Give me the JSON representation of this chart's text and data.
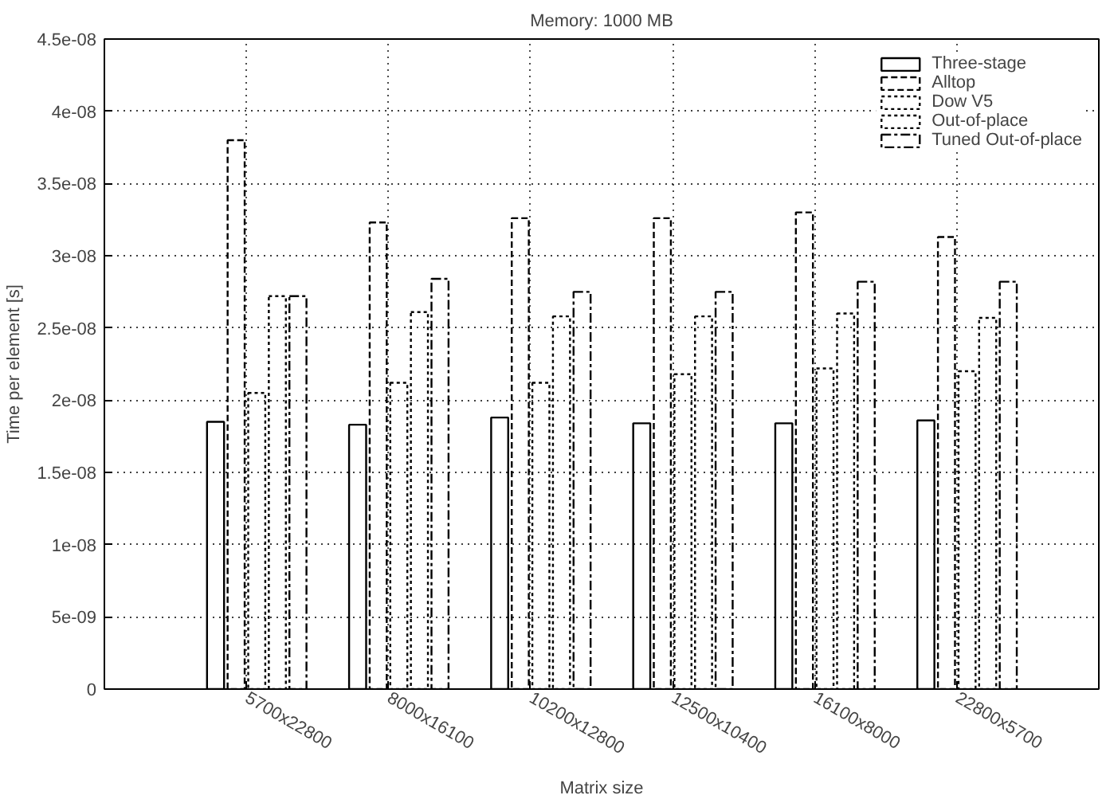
{
  "chart_data": {
    "type": "bar",
    "title": "Memory: 1000 MB",
    "xlabel": "Matrix size",
    "ylabel": "Time per element [s]",
    "categories": [
      "5700x22800",
      "8000x16100",
      "10200x12800",
      "12500x10400",
      "16100x8000",
      "22800x5700"
    ],
    "series": [
      {
        "name": "Three-stage",
        "color": "#000000",
        "line_style": "solid",
        "values": [
          1.85e-08,
          1.83e-08,
          1.88e-08,
          1.84e-08,
          1.84e-08,
          1.86e-08
        ]
      },
      {
        "name": "Alltop",
        "color": "#000000",
        "line_style": "dashed",
        "values": [
          3.8e-08,
          3.23e-08,
          3.26e-08,
          3.26e-08,
          3.3e-08,
          3.13e-08
        ]
      },
      {
        "name": "Dow V5",
        "color": "#000000",
        "line_style": "dotted",
        "values": [
          2.05e-08,
          2.12e-08,
          2.12e-08,
          2.18e-08,
          2.22e-08,
          2.2e-08
        ]
      },
      {
        "name": "Out-of-place",
        "color": "#000000",
        "line_style": "dotted",
        "values": [
          2.72e-08,
          2.61e-08,
          2.58e-08,
          2.58e-08,
          2.6e-08,
          2.57e-08
        ]
      },
      {
        "name": "Tuned Out-of-place",
        "color": "#000000",
        "line_style": "dashdot",
        "values": [
          2.72e-08,
          2.84e-08,
          2.75e-08,
          2.75e-08,
          2.82e-08,
          2.82e-08
        ]
      }
    ],
    "ylim": [
      0,
      4.5e-08
    ],
    "yticks": [
      {
        "value": 0,
        "label": "0"
      },
      {
        "value": 5e-09,
        "label": "5e-09"
      },
      {
        "value": 1e-08,
        "label": "1e-08"
      },
      {
        "value": 1.5e-08,
        "label": "1.5e-08"
      },
      {
        "value": 2e-08,
        "label": "2e-08"
      },
      {
        "value": 2.5e-08,
        "label": "2.5e-08"
      },
      {
        "value": 3e-08,
        "label": "3e-08"
      },
      {
        "value": 3.5e-08,
        "label": "3.5e-08"
      },
      {
        "value": 4e-08,
        "label": "4e-08"
      },
      {
        "value": 4.5e-08,
        "label": "4.5e-08"
      }
    ],
    "grid": true,
    "legend": "top right"
  }
}
